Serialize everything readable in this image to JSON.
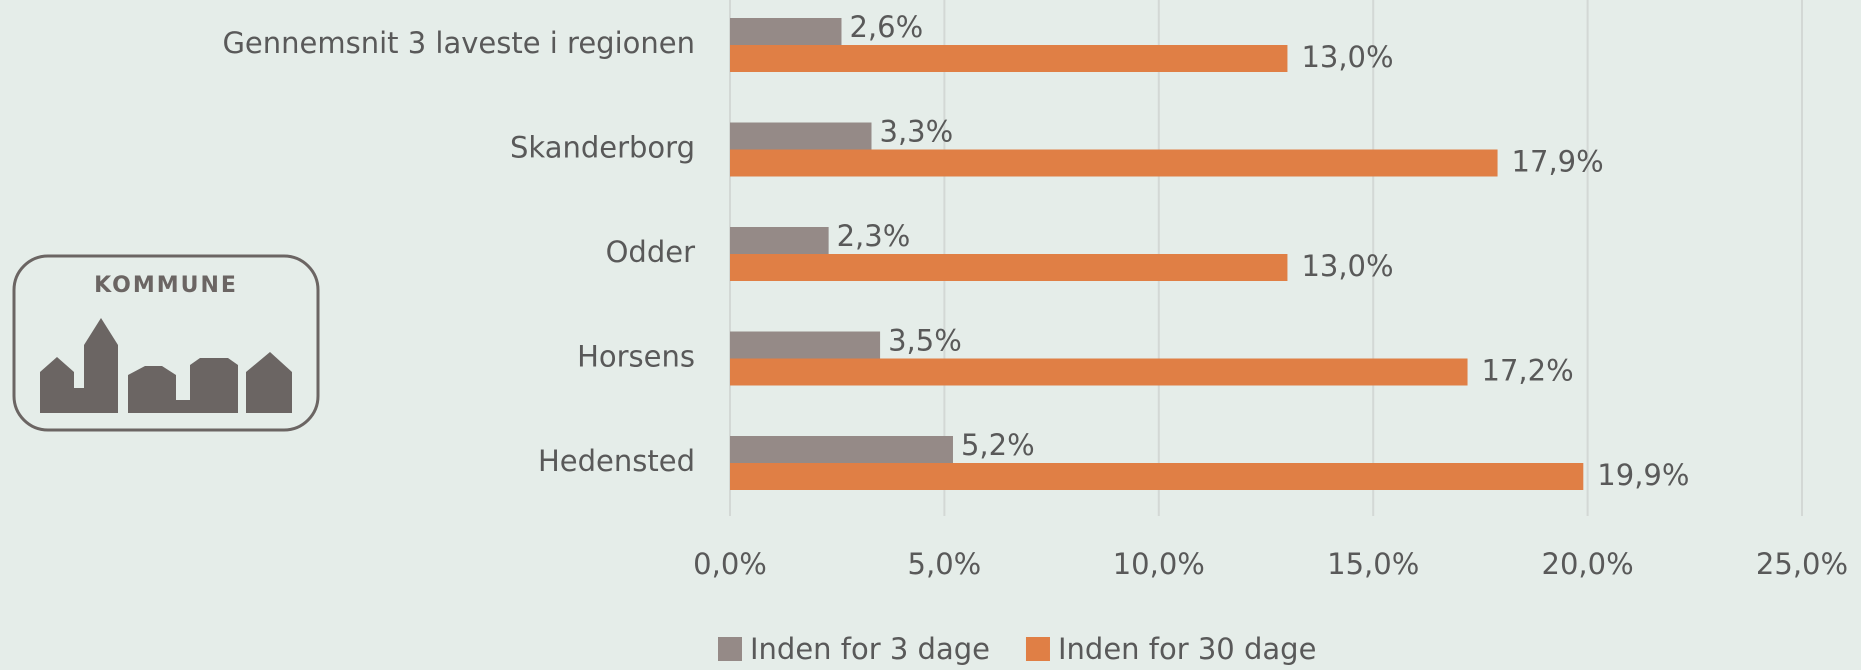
{
  "logo": {
    "text": "KOMMUNE"
  },
  "chart_data": {
    "type": "barh",
    "categories": [
      "Gennemsnit 3 laveste i regionen",
      "Skanderborg",
      "Odder",
      "Horsens",
      "Hedensted"
    ],
    "series": [
      {
        "name": "Inden for 3 dage",
        "color": "#958a87",
        "values": [
          2.6,
          3.3,
          2.3,
          3.5,
          5.2
        ],
        "value_labels": [
          "2,6%",
          "3,3%",
          "2,3%",
          "3,5%",
          "5,2%"
        ]
      },
      {
        "name": "Inden for 30 dage",
        "color": "#e07f45",
        "values": [
          13.0,
          17.9,
          13.0,
          17.2,
          19.9
        ],
        "value_labels": [
          "13,0%",
          "17,9%",
          "13,0%",
          "17,2%",
          "19,9%"
        ]
      }
    ],
    "xlim": [
      0,
      25
    ],
    "xticks": [
      {
        "value": 0,
        "label": "0,0%"
      },
      {
        "value": 5,
        "label": "5,0%"
      },
      {
        "value": 10,
        "label": "10,0%"
      },
      {
        "value": 15,
        "label": "15,0%"
      },
      {
        "value": 20,
        "label": "20,0%"
      },
      {
        "value": 25,
        "label": "25,0%"
      }
    ],
    "grid": true,
    "legend": "bottom"
  }
}
